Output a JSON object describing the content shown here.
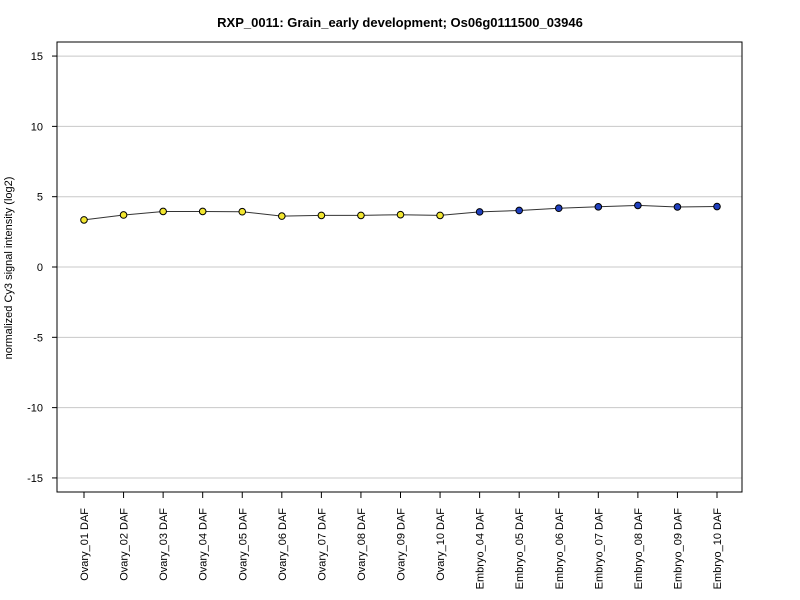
{
  "chart_data": {
    "type": "line",
    "title": "RXP_0011: Grain_early development; Os06g0111500_03946",
    "ylabel": "normalized Cy3 signal intensity (log2)",
    "xlabel": "",
    "ylim": [
      -16,
      16
    ],
    "yticks": [
      -15,
      -10,
      -5,
      0,
      5,
      10,
      15
    ],
    "grid": "horizontal",
    "categories": [
      "Ovary_01 DAF",
      "Ovary_02 DAF",
      "Ovary_03 DAF",
      "Ovary_04 DAF",
      "Ovary_05 DAF",
      "Ovary_06 DAF",
      "Ovary_07 DAF",
      "Ovary_08 DAF",
      "Ovary_09 DAF",
      "Ovary_10 DAF",
      "Embryo_04 DAF",
      "Embryo_05 DAF",
      "Embryo_06 DAF",
      "Embryo_07 DAF",
      "Embryo_08 DAF",
      "Embryo_09 DAF",
      "Embryo_10 DAF"
    ],
    "series": [
      {
        "values": [
          3.35,
          3.7,
          3.95,
          3.95,
          3.93,
          3.62,
          3.67,
          3.67,
          3.72,
          3.67,
          3.92,
          4.02,
          4.18,
          4.28,
          4.38,
          4.27,
          4.3
        ],
        "colors": [
          "#f2e630",
          "#f2e630",
          "#f2e630",
          "#f2e630",
          "#f2e630",
          "#f2e630",
          "#f2e630",
          "#f2e630",
          "#f2e630",
          "#f2e630",
          "#1f3fbf",
          "#1f3fbf",
          "#1f3fbf",
          "#1f3fbf",
          "#1f3fbf",
          "#1f3fbf",
          "#1f3fbf"
        ]
      }
    ],
    "line_color": "#333333",
    "grid_color": "#c8c8c8"
  }
}
